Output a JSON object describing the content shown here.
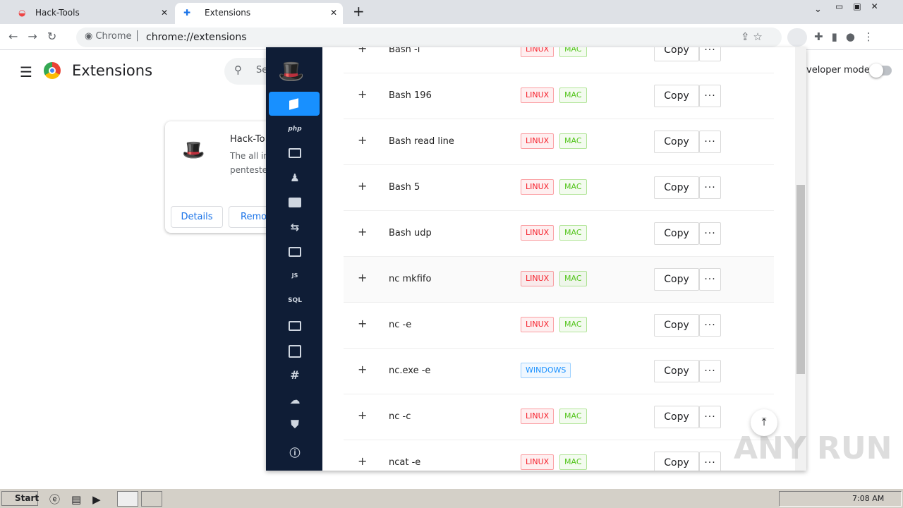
{
  "browser": {
    "tabs": [
      "Hack-Tools",
      "Extensions"
    ],
    "omnibox": {
      "site": "Chrome",
      "url": "chrome://extensions"
    }
  },
  "extensions_page": {
    "title": "Extensions",
    "search_placeholder": "Se",
    "developer_mode": "veloper mode",
    "card": {
      "name": "Hack-To",
      "description_lines": [
        "The all in",
        "penteste"
      ],
      "buttons": [
        "Details",
        "Remov"
      ]
    }
  },
  "popup": {
    "sidebar_labels": {
      "js": "JS",
      "sql": "SQL",
      "php": "php"
    },
    "rows": [
      {
        "name": "Bash -i",
        "tags": [
          {
            "label": "LINUX",
            "color": "#f5222d"
          },
          {
            "label": "MAC",
            "color": "#52c41a"
          }
        ],
        "action": "Copy"
      },
      {
        "name": "Bash 196",
        "tags": [
          {
            "label": "LINUX",
            "color": "#f5222d"
          },
          {
            "label": "MAC",
            "color": "#52c41a"
          }
        ],
        "action": "Copy"
      },
      {
        "name": "Bash read line",
        "tags": [
          {
            "label": "LINUX",
            "color": "#f5222d"
          },
          {
            "label": "MAC",
            "color": "#52c41a"
          }
        ],
        "action": "Copy"
      },
      {
        "name": "Bash 5",
        "tags": [
          {
            "label": "LINUX",
            "color": "#f5222d"
          },
          {
            "label": "MAC",
            "color": "#52c41a"
          }
        ],
        "action": "Copy"
      },
      {
        "name": "Bash udp",
        "tags": [
          {
            "label": "LINUX",
            "color": "#f5222d"
          },
          {
            "label": "MAC",
            "color": "#52c41a"
          }
        ],
        "action": "Copy"
      },
      {
        "name": "nc mkfifo",
        "tags": [
          {
            "label": "LINUX",
            "color": "#f5222d"
          },
          {
            "label": "MAC",
            "color": "#52c41a"
          }
        ],
        "action": "Copy"
      },
      {
        "name": "nc -e",
        "tags": [
          {
            "label": "LINUX",
            "color": "#f5222d"
          },
          {
            "label": "MAC",
            "color": "#52c41a"
          }
        ],
        "action": "Copy"
      },
      {
        "name": "nc.exe -e",
        "tags": [
          {
            "label": "WINDOWS",
            "color": "#1890ff"
          }
        ],
        "action": "Copy"
      },
      {
        "name": "nc -c",
        "tags": [
          {
            "label": "LINUX",
            "color": "#f5222d"
          },
          {
            "label": "MAC",
            "color": "#52c41a"
          }
        ],
        "action": "Copy"
      },
      {
        "name": "ncat -e",
        "tags": [
          {
            "label": "LINUX",
            "color": "#f5222d"
          },
          {
            "label": "MAC",
            "color": "#52c41a"
          }
        ],
        "action": "Copy"
      }
    ]
  },
  "taskbar": {
    "start": "Start",
    "clock": "7:08 AM"
  },
  "watermark": "ANY RUN"
}
